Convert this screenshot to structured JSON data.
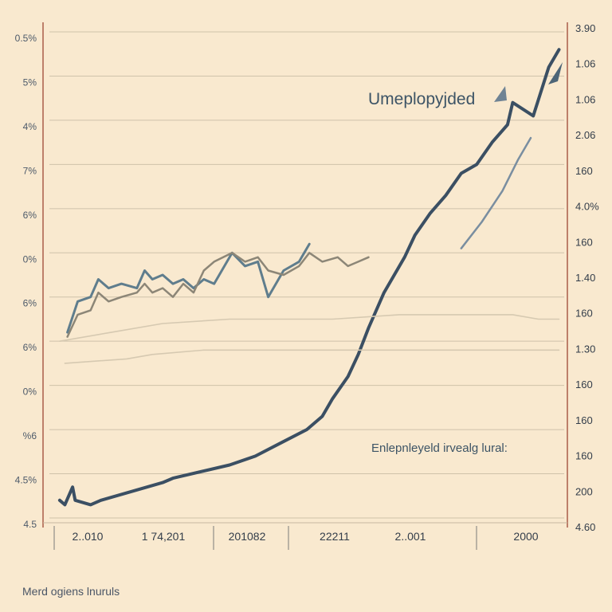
{
  "footer_text": "Merd ogiens lnuruls",
  "chart_data": {
    "type": "line",
    "title": "Umeplopyjded",
    "annotation": "Enlepnleyeld irvealg lural:",
    "xlabel": "",
    "ylabel_left": "",
    "ylabel_right": "",
    "left_ticks": [
      "4.5",
      "4.5%",
      "%6",
      "0%",
      "6%",
      "6%",
      "0%",
      "6%",
      "7%",
      "4%",
      "5%",
      "0.5%"
    ],
    "right_ticks": [
      "4.60",
      "200",
      "160",
      "160",
      "160",
      "1.30",
      "160",
      "1.40",
      "160",
      "4.0%",
      "160",
      "2.06",
      "1.06",
      "1.06",
      "3.90"
    ],
    "x_ticks": [
      "2..010",
      "1  74,201",
      "201082",
      "22211",
      "2..001",
      "2000"
    ],
    "grid": true,
    "legend": "none",
    "y_scale_left": [
      0,
      11
    ],
    "y_scale_right": [
      0,
      14
    ],
    "series": [
      {
        "color": "#3b4f63",
        "axis": "left",
        "x": [
          0.2,
          0.3,
          0.45,
          0.5,
          0.8,
          1.0,
          2.2,
          2.4,
          3.5,
          4.0,
          4.5,
          5.0,
          5.3,
          5.5,
          5.8,
          6.0,
          6.2,
          6.5,
          6.9,
          7.1,
          7.4,
          7.7,
          8.0,
          8.3,
          8.6,
          8.9,
          9.0,
          9.4,
          9.7,
          9.9
        ],
        "values": [
          0.4,
          0.3,
          0.7,
          0.4,
          0.3,
          0.4,
          0.8,
          0.9,
          1.2,
          1.4,
          1.7,
          2.0,
          2.3,
          2.7,
          3.2,
          3.7,
          4.3,
          5.1,
          5.9,
          6.4,
          6.9,
          7.3,
          7.8,
          8.0,
          8.5,
          8.9,
          9.4,
          9.1,
          10.2,
          10.6
        ]
      },
      {
        "color": "#5f7d8d",
        "axis": "left",
        "x": [
          0.35,
          0.55,
          0.8,
          0.95,
          1.15,
          1.4,
          1.7,
          1.85,
          2.0,
          2.2,
          2.4,
          2.6,
          2.8,
          3.0,
          3.2,
          3.55,
          3.8,
          4.05,
          4.25,
          4.55,
          4.85,
          5.05
        ],
        "values": [
          4.2,
          4.9,
          5.0,
          5.4,
          5.2,
          5.3,
          5.2,
          5.6,
          5.4,
          5.5,
          5.3,
          5.4,
          5.2,
          5.4,
          5.3,
          6.0,
          5.7,
          5.8,
          5.0,
          5.6,
          5.8,
          6.2
        ]
      },
      {
        "color": "#8c8677",
        "axis": "left",
        "x": [
          0.35,
          0.55,
          0.8,
          0.95,
          1.15,
          1.4,
          1.7,
          1.85,
          2.0,
          2.2,
          2.4,
          2.6,
          2.8,
          3.0,
          3.2,
          3.55,
          3.8,
          4.05,
          4.25,
          4.55,
          4.85,
          5.05,
          5.3,
          5.6,
          5.8,
          6.0,
          6.2
        ],
        "values": [
          4.1,
          4.6,
          4.7,
          5.1,
          4.9,
          5.0,
          5.1,
          5.3,
          5.1,
          5.2,
          5.0,
          5.3,
          5.1,
          5.6,
          5.8,
          6.0,
          5.8,
          5.9,
          5.6,
          5.5,
          5.7,
          6.0,
          5.8,
          5.9,
          5.7,
          5.8,
          5.9
        ]
      },
      {
        "color": "#7a8ea0",
        "axis": "left",
        "x": [
          8.0,
          8.4,
          8.8,
          9.1,
          9.35
        ],
        "values": [
          6.1,
          6.7,
          7.4,
          8.1,
          8.6
        ]
      },
      {
        "color": "#d6c9b1",
        "axis": "left",
        "x": [
          0.2,
          1.2,
          2.2,
          3.5,
          4.5,
          5.5,
          6.8,
          8.0,
          9.0,
          9.5,
          9.9
        ],
        "values": [
          4.0,
          4.2,
          4.4,
          4.5,
          4.5,
          4.5,
          4.6,
          4.6,
          4.6,
          4.5,
          4.5
        ]
      },
      {
        "color": "#d6c9b1",
        "axis": "left",
        "x": [
          0.3,
          1.5,
          2.0,
          3.0,
          4.0,
          5.0,
          6.0,
          7.5,
          9.0,
          9.9
        ],
        "values": [
          3.5,
          3.6,
          3.7,
          3.8,
          3.8,
          3.8,
          3.8,
          3.8,
          3.8,
          3.8
        ]
      }
    ]
  }
}
